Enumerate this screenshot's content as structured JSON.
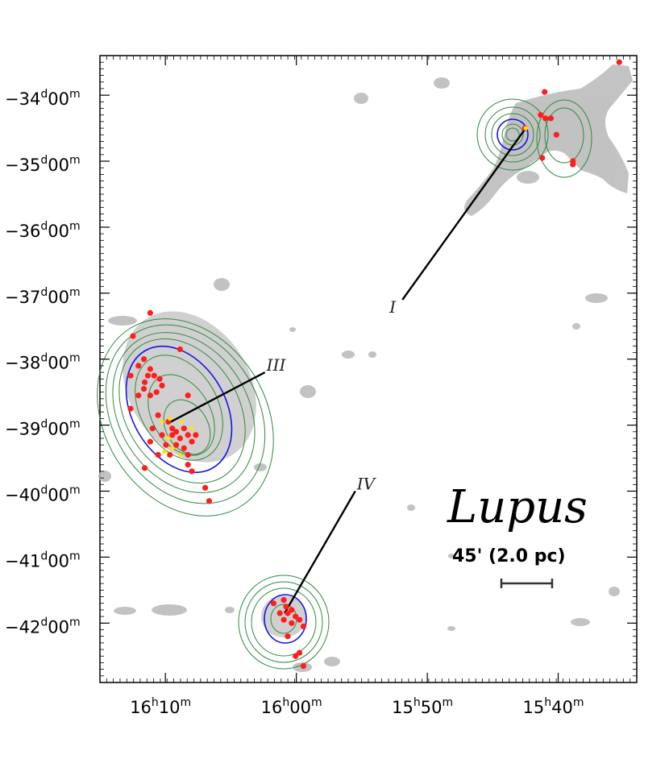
{
  "chart_data": {
    "type": "scatter",
    "title": "Lupus",
    "xlabel": "",
    "ylabel": "",
    "x_axis": {
      "unit": "right ascension (minutes of time)",
      "range": [
        16.25,
        15.5667
      ],
      "ticks": [
        {
          "value": 16.1667,
          "h": "16",
          "m": "10"
        },
        {
          "value": 16.0,
          "h": "16",
          "m": "00"
        },
        {
          "value": 15.8333,
          "h": "15",
          "m": "50"
        },
        {
          "value": 15.6667,
          "h": "15",
          "m": "40"
        }
      ]
    },
    "y_axis": {
      "unit": "declination (degrees)",
      "range": [
        -42.9,
        -33.4
      ],
      "ticks": [
        {
          "value": -34,
          "d": "−34",
          "m": "00"
        },
        {
          "value": -35,
          "d": "−35",
          "m": "00"
        },
        {
          "value": -36,
          "d": "−36",
          "m": "00"
        },
        {
          "value": -37,
          "d": "−37",
          "m": "00"
        },
        {
          "value": -38,
          "d": "−38",
          "m": "00"
        },
        {
          "value": -39,
          "d": "−39",
          "m": "00"
        },
        {
          "value": -40,
          "d": "−40",
          "m": "00"
        },
        {
          "value": -41,
          "d": "−41",
          "m": "00"
        },
        {
          "value": -42,
          "d": "−42",
          "m": "00"
        }
      ]
    },
    "scale_bar": {
      "label": "45' (2.0 pc)",
      "length_arcmin": 45
    },
    "regions": [
      {
        "name": "I",
        "ra": 15.708,
        "dec": -34.5,
        "label_ra": 15.865,
        "label_dec": -37.1
      },
      {
        "name": "III",
        "ra": 16.16,
        "dec": -38.95,
        "label_ra": 16.04,
        "label_dec": -38.2
      },
      {
        "name": "IV",
        "ra": 16.015,
        "dec": -41.85,
        "label_ra": 15.925,
        "label_dec": -40.0
      }
    ],
    "series": [
      {
        "name": "",
        "color": "#ff1e1e",
        "points": [
          [
            15.709,
            -34.5
          ],
          [
            15.684,
            -33.95
          ],
          [
            15.689,
            -34.3
          ],
          [
            15.683,
            -34.35
          ],
          [
            15.676,
            -34.35
          ],
          [
            15.669,
            -34.6
          ],
          [
            15.687,
            -34.95
          ],
          [
            15.648,
            -35.05
          ],
          [
            15.648,
            -35.0
          ],
          [
            15.589,
            -33.5
          ],
          [
            16.208,
            -37.65
          ],
          [
            16.186,
            -37.3
          ],
          [
            16.194,
            -38.0
          ],
          [
            16.201,
            -38.1
          ],
          [
            16.186,
            -38.15
          ],
          [
            16.181,
            -38.25
          ],
          [
            16.189,
            -38.25
          ],
          [
            16.174,
            -38.3
          ],
          [
            16.211,
            -38.25
          ],
          [
            16.193,
            -38.35
          ],
          [
            16.171,
            -38.4
          ],
          [
            16.194,
            -38.45
          ],
          [
            16.178,
            -38.5
          ],
          [
            16.186,
            -38.55
          ],
          [
            16.201,
            -38.55
          ],
          [
            16.138,
            -38.55
          ],
          [
            16.211,
            -38.75
          ],
          [
            16.176,
            -38.85
          ],
          [
            16.163,
            -38.95
          ],
          [
            16.158,
            -39.05
          ],
          [
            16.158,
            -39.15
          ],
          [
            16.153,
            -39.1
          ],
          [
            16.148,
            -39.2
          ],
          [
            16.143,
            -39.05
          ],
          [
            16.138,
            -39.15
          ],
          [
            16.133,
            -39.25
          ],
          [
            16.153,
            -39.3
          ],
          [
            16.143,
            -39.35
          ],
          [
            16.138,
            -39.45
          ],
          [
            16.166,
            -39.3
          ],
          [
            16.171,
            -39.15
          ],
          [
            16.183,
            -39.05
          ],
          [
            16.186,
            -39.25
          ],
          [
            16.176,
            -39.45
          ],
          [
            16.161,
            -39.45
          ],
          [
            16.128,
            -39.15
          ],
          [
            16.138,
            -39.6
          ],
          [
            16.133,
            -39.7
          ],
          [
            16.193,
            -39.65
          ],
          [
            16.116,
            -39.95
          ],
          [
            16.111,
            -40.15
          ],
          [
            16.148,
            -37.85
          ],
          [
            16.029,
            -41.7
          ],
          [
            16.016,
            -41.65
          ],
          [
            16.013,
            -41.75
          ],
          [
            16.011,
            -41.85
          ],
          [
            16.021,
            -41.85
          ],
          [
            16.006,
            -41.8
          ],
          [
            16.001,
            -41.9
          ],
          [
            16.016,
            -41.95
          ],
          [
            16.006,
            -42.0
          ],
          [
            15.996,
            -41.95
          ],
          [
            15.991,
            -42.05
          ],
          [
            16.011,
            -42.2
          ],
          [
            16.001,
            -42.5
          ],
          [
            15.996,
            -42.45
          ],
          [
            15.991,
            -42.65
          ]
        ]
      },
      {
        "name": "",
        "color": "#ffe600",
        "points": [
          [
            16.171,
            -38.95
          ],
          [
            16.161,
            -38.9
          ],
          [
            16.146,
            -38.95
          ],
          [
            16.158,
            -39.35
          ],
          [
            16.168,
            -39.4
          ],
          [
            16.148,
            -39.45
          ],
          [
            16.133,
            -39.05
          ],
          [
            16.163,
            -39.2
          ],
          [
            15.708,
            -34.5
          ]
        ]
      }
    ],
    "grid": false,
    "legend": "none"
  }
}
